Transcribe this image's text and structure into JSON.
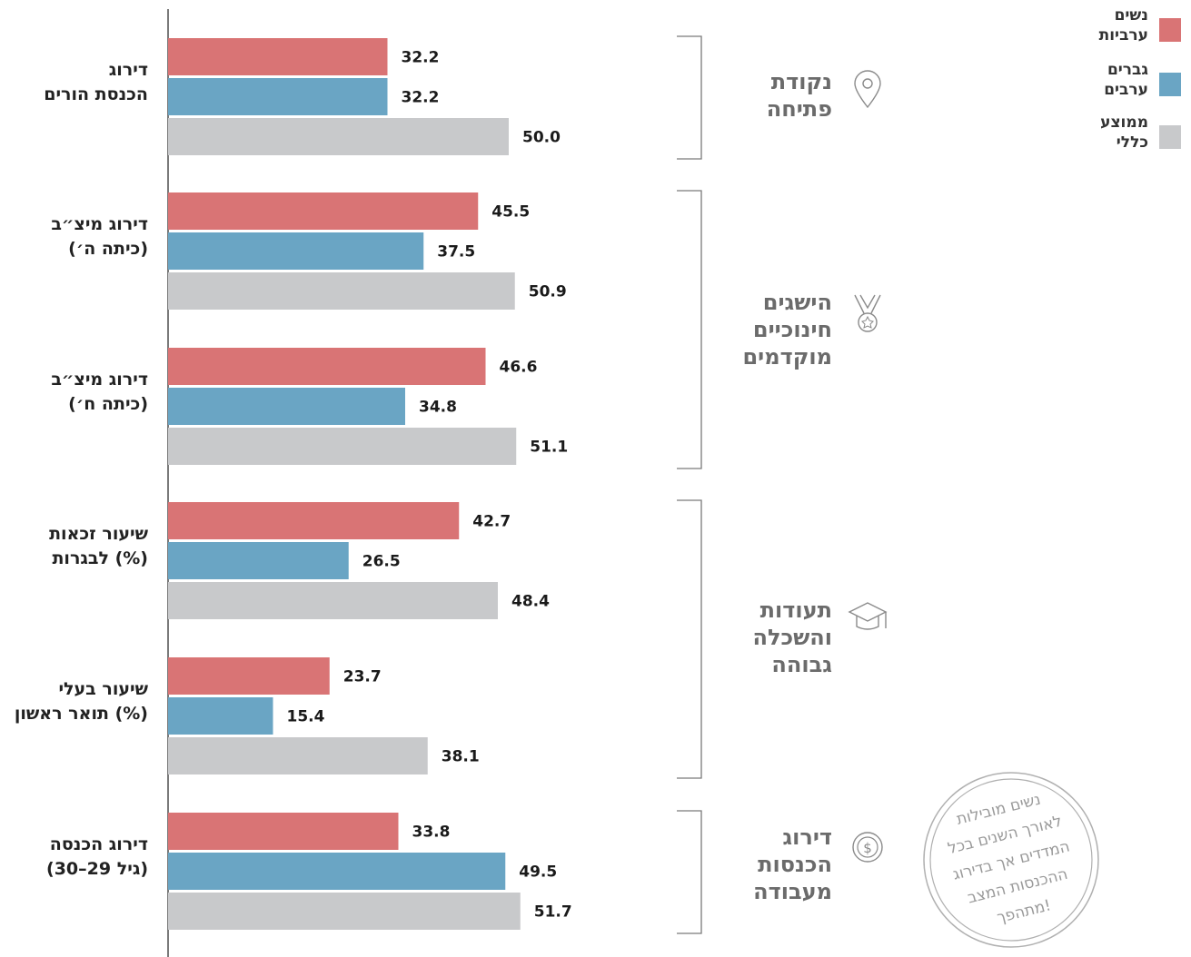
{
  "chart_data": {
    "type": "bar",
    "orientation": "horizontal",
    "categories": [
      [
        "דירוג",
        "הכנסת הורים"
      ],
      [
        "דירוג מיצ״ב",
        "(כיתה ה׳)"
      ],
      [
        "דירוג מיצ״ב",
        "(כיתה ח׳)"
      ],
      [
        "שיעור זכאות",
        "לבגרות (%)"
      ],
      [
        "שיעור בעלי",
        "תואר ראשון (%)"
      ],
      [
        "דירוג הכנסה",
        "(גיל 29–30)"
      ]
    ],
    "series": [
      {
        "name": [
          "נשים",
          "ערביות"
        ],
        "color": "#d97475",
        "values": [
          32.2,
          45.5,
          46.6,
          42.7,
          23.7,
          33.8
        ]
      },
      {
        "name": [
          "גברים",
          "ערבים"
        ],
        "color": "#6aa5c4",
        "values": [
          32.2,
          37.5,
          34.8,
          26.5,
          15.4,
          49.5
        ]
      },
      {
        "name": [
          "ממוצע",
          "כללי"
        ],
        "color": "#c8c9cb",
        "values": [
          50.0,
          50.9,
          51.1,
          48.4,
          38.1,
          51.7
        ]
      }
    ],
    "value_labels": [
      [
        "32.2",
        "32.2",
        "50.0"
      ],
      [
        "45.5",
        "37.5",
        "50.9"
      ],
      [
        "46.6",
        "34.8",
        "51.1"
      ],
      [
        "42.7",
        "26.5",
        "48.4"
      ],
      [
        "23.7",
        "15.4",
        "38.1"
      ],
      [
        "33.8",
        "49.5",
        "51.7"
      ]
    ],
    "groups": [
      {
        "label": [
          "נקודת",
          "פתיחה"
        ],
        "icon": "map-pin-icon",
        "categories": [
          0
        ]
      },
      {
        "label": [
          "הישגים",
          "חינוכיים",
          "מוקדמים"
        ],
        "icon": "medal-icon",
        "categories": [
          1,
          2
        ]
      },
      {
        "label": [
          "תעודות",
          "והשכלה",
          "גבוהה"
        ],
        "icon": "graduation-cap-icon",
        "categories": [
          3,
          4
        ]
      },
      {
        "label": [
          "דירוג",
          "הכנסות",
          "מעבודה"
        ],
        "icon": "dollar-coin-icon",
        "categories": [
          5
        ]
      }
    ],
    "legend_position": "top-right",
    "grid": false,
    "xlim": [
      0,
      100
    ]
  },
  "annotation": {
    "stamp_lines": [
      "נשים מובילות",
      "לאורך השנים בכל",
      "המדדים אך בדירוג",
      "ההכנסות המצב",
      "מתהפך!"
    ]
  }
}
